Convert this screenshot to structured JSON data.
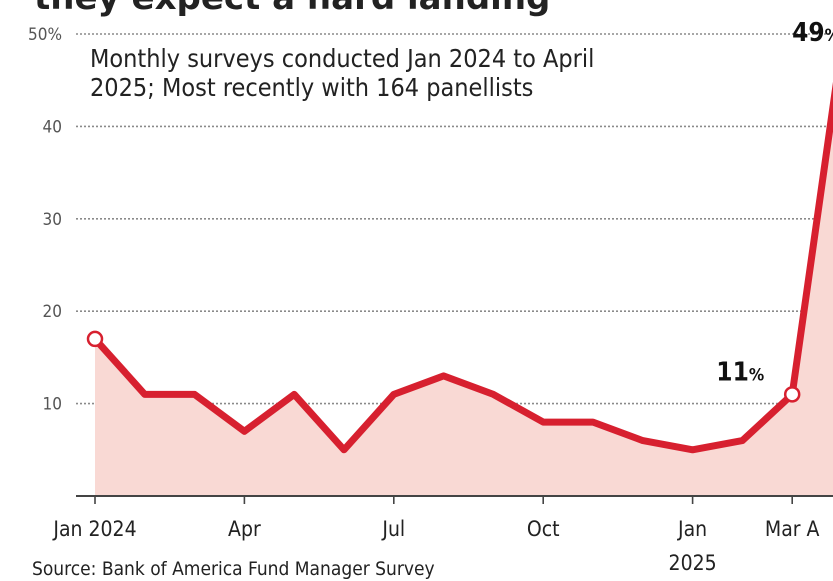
{
  "chart_data": {
    "type": "area",
    "title": "",
    "subtitle": "Monthly surveys conducted Jan 2024 to April 2025; Most recently with 164 panellists",
    "source": "Source: Bank of America Fund Manager Survey",
    "xlabel": "",
    "ylabel": "",
    "ylim": [
      0,
      50
    ],
    "yticks": [
      "10",
      "20",
      "30",
      "40",
      "50%"
    ],
    "grid": true,
    "x": [
      "Jan 2024",
      "Feb 2024",
      "Mar 2024",
      "Apr 2024",
      "May 2024",
      "Jun 2024",
      "Jul 2024",
      "Aug 2024",
      "Sep 2024",
      "Oct 2024",
      "Nov 2024",
      "Dec 2024",
      "Jan 2025",
      "Feb 2025",
      "Mar 2025",
      "Apr 2025"
    ],
    "xtick_labels": [
      {
        "index": 0,
        "label": "Jan 2024"
      },
      {
        "index": 3,
        "label": "Apr"
      },
      {
        "index": 6,
        "label": "Jul"
      },
      {
        "index": 9,
        "label": "Oct"
      },
      {
        "index": 12,
        "label": "Jan",
        "label2": "2025"
      },
      {
        "index": 14,
        "label": "Mar A"
      }
    ],
    "series": [
      {
        "values": [
          17,
          11,
          11,
          7,
          11,
          5,
          11,
          13,
          11,
          8,
          8,
          6,
          5,
          6,
          11,
          49
        ],
        "color": "#d7202f",
        "fill": "#f9d9d4"
      }
    ],
    "annotations": [
      {
        "index": 14,
        "value": "11",
        "unit": "%"
      },
      {
        "index": 15,
        "value": "49",
        "unit": "%"
      }
    ],
    "markers": [
      0,
      14
    ]
  }
}
